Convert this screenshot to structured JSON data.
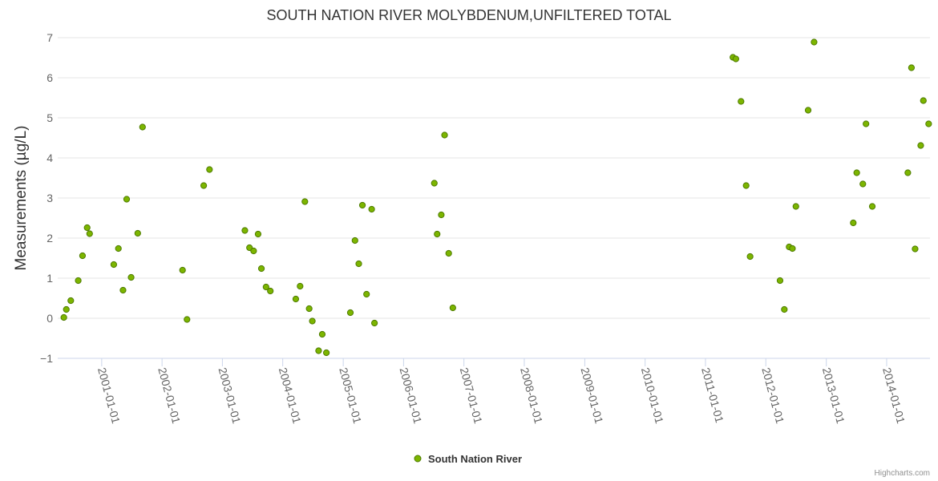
{
  "chart_data": {
    "type": "scatter",
    "title": "SOUTH NATION RIVER MOLYBDENUM,UNFILTERED TOTAL",
    "ylabel": "Measurements (µg/L)",
    "xlabel": "",
    "ylim": [
      -1,
      7
    ],
    "y_ticks": [
      "−1",
      "0",
      "1",
      "2",
      "3",
      "4",
      "5",
      "6",
      "7"
    ],
    "xlim": [
      "2000-04-10",
      "2014-09-20"
    ],
    "x_ticks": [
      "2001-01-01",
      "2002-01-01",
      "2003-01-01",
      "2004-01-01",
      "2005-01-01",
      "2006-01-01",
      "2007-01-01",
      "2008-01-01",
      "2009-01-01",
      "2010-01-01",
      "2011-01-01",
      "2012-01-01",
      "2013-01-01",
      "2014-01-01"
    ],
    "grid": "horizontal",
    "legend": "bottom-center",
    "series": [
      {
        "name": "South Nation River",
        "color": "#7cb500",
        "marker_edge": "#4d7a00",
        "points": [
          {
            "x": "2000-05-17",
            "y": 0.02
          },
          {
            "x": "2000-06-01",
            "y": 0.22
          },
          {
            "x": "2000-06-28",
            "y": 0.44
          },
          {
            "x": "2000-08-12",
            "y": 0.94
          },
          {
            "x": "2000-09-07",
            "y": 1.56
          },
          {
            "x": "2000-10-05",
            "y": 2.26
          },
          {
            "x": "2000-10-20",
            "y": 2.11
          },
          {
            "x": "2001-03-15",
            "y": 1.34
          },
          {
            "x": "2001-04-12",
            "y": 1.74
          },
          {
            "x": "2001-05-10",
            "y": 0.7
          },
          {
            "x": "2001-06-01",
            "y": 2.97
          },
          {
            "x": "2001-06-28",
            "y": 1.02
          },
          {
            "x": "2001-08-07",
            "y": 2.12
          },
          {
            "x": "2001-09-05",
            "y": 4.77
          },
          {
            "x": "2002-05-05",
            "y": 1.2
          },
          {
            "x": "2002-06-01",
            "y": -0.03
          },
          {
            "x": "2002-09-10",
            "y": 3.31
          },
          {
            "x": "2002-10-15",
            "y": 3.71
          },
          {
            "x": "2003-05-17",
            "y": 2.19
          },
          {
            "x": "2003-06-14",
            "y": 1.76
          },
          {
            "x": "2003-07-09",
            "y": 1.68
          },
          {
            "x": "2003-08-05",
            "y": 2.1
          },
          {
            "x": "2003-08-25",
            "y": 1.24
          },
          {
            "x": "2003-09-22",
            "y": 0.78
          },
          {
            "x": "2003-10-18",
            "y": 0.68
          },
          {
            "x": "2004-03-20",
            "y": 0.48
          },
          {
            "x": "2004-04-15",
            "y": 0.8
          },
          {
            "x": "2004-05-14",
            "y": 2.91
          },
          {
            "x": "2004-06-09",
            "y": 0.24
          },
          {
            "x": "2004-06-28",
            "y": -0.07
          },
          {
            "x": "2004-08-05",
            "y": -0.81
          },
          {
            "x": "2004-08-27",
            "y": -0.4
          },
          {
            "x": "2004-09-21",
            "y": -0.86
          },
          {
            "x": "2005-02-13",
            "y": 0.14
          },
          {
            "x": "2005-03-13",
            "y": 1.94
          },
          {
            "x": "2005-04-05",
            "y": 1.36
          },
          {
            "x": "2005-04-27",
            "y": 2.82
          },
          {
            "x": "2005-05-22",
            "y": 0.6
          },
          {
            "x": "2005-06-22",
            "y": 2.72
          },
          {
            "x": "2005-07-09",
            "y": -0.12
          },
          {
            "x": "2006-07-06",
            "y": 3.37
          },
          {
            "x": "2006-07-23",
            "y": 2.1
          },
          {
            "x": "2006-08-17",
            "y": 2.58
          },
          {
            "x": "2006-09-06",
            "y": 4.57
          },
          {
            "x": "2006-10-01",
            "y": 1.62
          },
          {
            "x": "2006-10-26",
            "y": 0.26
          },
          {
            "x": "2011-06-16",
            "y": 6.51
          },
          {
            "x": "2011-07-04",
            "y": 6.47
          },
          {
            "x": "2011-08-04",
            "y": 5.41
          },
          {
            "x": "2011-09-04",
            "y": 3.31
          },
          {
            "x": "2011-09-28",
            "y": 1.54
          },
          {
            "x": "2012-03-27",
            "y": 0.94
          },
          {
            "x": "2012-04-22",
            "y": 0.22
          },
          {
            "x": "2012-05-21",
            "y": 1.78
          },
          {
            "x": "2012-06-10",
            "y": 1.74
          },
          {
            "x": "2012-07-01",
            "y": 2.79
          },
          {
            "x": "2012-09-13",
            "y": 5.19
          },
          {
            "x": "2012-10-19",
            "y": 6.89
          },
          {
            "x": "2013-06-13",
            "y": 2.38
          },
          {
            "x": "2013-07-04",
            "y": 3.63
          },
          {
            "x": "2013-08-10",
            "y": 3.35
          },
          {
            "x": "2013-08-29",
            "y": 4.85
          },
          {
            "x": "2013-10-06",
            "y": 2.79
          },
          {
            "x": "2014-05-09",
            "y": 3.63
          },
          {
            "x": "2014-05-31",
            "y": 6.25
          },
          {
            "x": "2014-06-22",
            "y": 1.73
          },
          {
            "x": "2014-07-26",
            "y": 4.31
          },
          {
            "x": "2014-08-11",
            "y": 5.43
          },
          {
            "x": "2014-09-12",
            "y": 4.85
          }
        ]
      }
    ]
  },
  "credit": "Highcharts.com"
}
